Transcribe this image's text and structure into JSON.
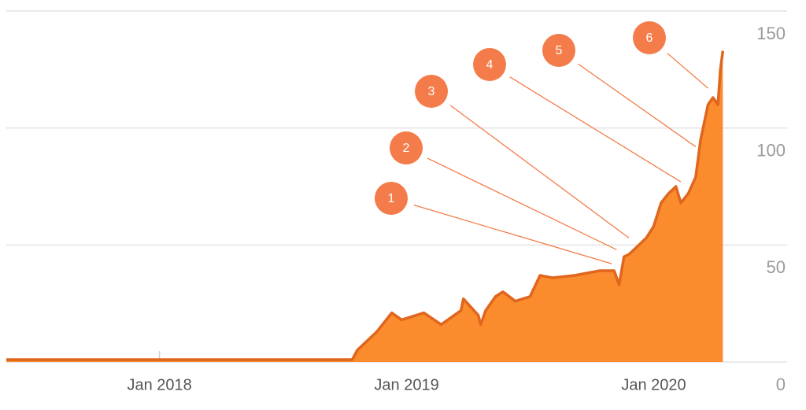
{
  "chart_data": {
    "type": "area",
    "x": [
      2017.38,
      2018.78,
      2018.8,
      2018.88,
      2018.94,
      2018.98,
      2019.07,
      2019.14,
      2019.22,
      2019.23,
      2019.29,
      2019.3,
      2019.32,
      2019.36,
      2019.39,
      2019.44,
      2019.5,
      2019.54,
      2019.59,
      2019.68,
      2019.78,
      2019.84,
      2019.86,
      2019.88,
      2019.9,
      2019.94,
      2019.97,
      2020.0,
      2020.03,
      2020.06,
      2020.09,
      2020.11,
      2020.14,
      2020.17,
      2020.19,
      2020.22,
      2020.24,
      2020.26,
      2020.27,
      2020.28
    ],
    "values": [
      1,
      1,
      5,
      13,
      21,
      18,
      21,
      16,
      22,
      27,
      20,
      16,
      22,
      28,
      30,
      26,
      28,
      37,
      36,
      37,
      39,
      39,
      33,
      45,
      46,
      50,
      53,
      58,
      68,
      72,
      75,
      68,
      72,
      79,
      95,
      110,
      113,
      110,
      125,
      133
    ],
    "line_color": "#e0661e",
    "fill_color": "#fb8c2e",
    "xlim": [
      2017.38,
      2020.54
    ],
    "xticks": [
      {
        "value": 2018,
        "label": "Jan 2018"
      },
      {
        "value": 2019,
        "label": "Jan 2019"
      },
      {
        "value": 2020,
        "label": "Jan 2020"
      }
    ],
    "ylim": [
      0,
      150
    ],
    "yticks": [
      0,
      50,
      100,
      150
    ],
    "grid": true,
    "annotations": [
      {
        "label": "1",
        "x": 2019.83,
        "y": 42
      },
      {
        "label": "2",
        "x": 2019.85,
        "y": 48
      },
      {
        "label": "3",
        "x": 2019.9,
        "y": 53
      },
      {
        "label": "4",
        "x": 2020.11,
        "y": 77
      },
      {
        "label": "5",
        "x": 2020.17,
        "y": 92
      },
      {
        "label": "6",
        "x": 2020.22,
        "y": 117
      }
    ],
    "annotation_color": "#f47c4a"
  }
}
